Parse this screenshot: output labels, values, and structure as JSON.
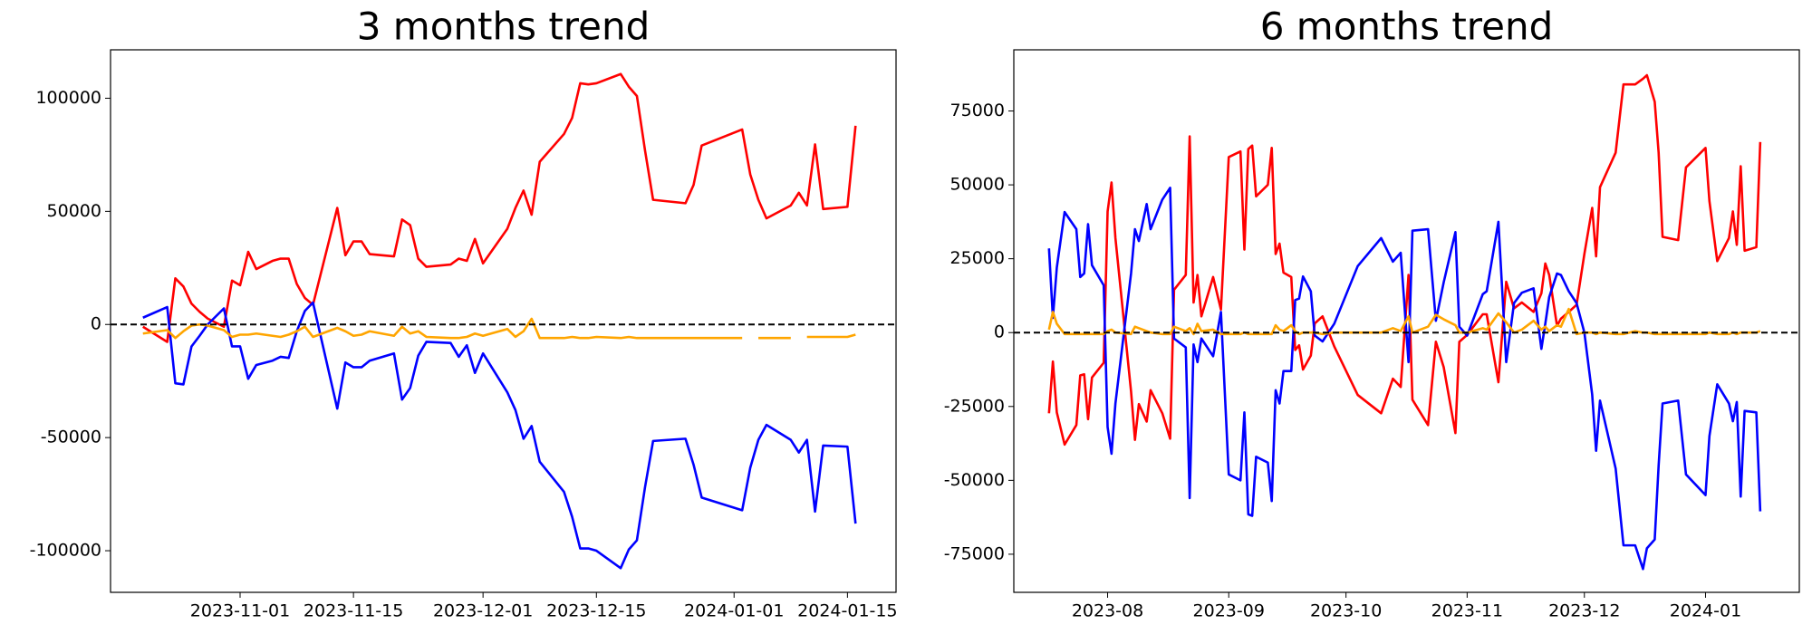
{
  "chart_data": [
    {
      "type": "line",
      "title": "3 months trend",
      "x": [
        "2023-10-20",
        "2023-10-23",
        "2023-10-24",
        "2023-10-25",
        "2023-10-26",
        "2023-10-27",
        "2023-10-28",
        "2023-10-30",
        "2023-10-31",
        "2023-11-01",
        "2023-11-02",
        "2023-11-03",
        "2023-11-05",
        "2023-11-06",
        "2023-11-07",
        "2023-11-08",
        "2023-11-09",
        "2023-11-10",
        "2023-11-13",
        "2023-11-14",
        "2023-11-15",
        "2023-11-16",
        "2023-11-17",
        "2023-11-20",
        "2023-11-21",
        "2023-11-22",
        "2023-11-23",
        "2023-11-24",
        "2023-11-27",
        "2023-11-28",
        "2023-11-29",
        "2023-11-30",
        "2023-12-01",
        "2023-12-04",
        "2023-12-05",
        "2023-12-06",
        "2023-12-07",
        "2023-12-08",
        "2023-12-11",
        "2023-12-12",
        "2023-12-13",
        "2023-12-14",
        "2023-12-15",
        "2023-12-18",
        "2023-12-19",
        "2023-12-20",
        "2023-12-21",
        "2023-12-22",
        "2023-12-26",
        "2023-12-27",
        "2023-12-28",
        "2024-01-02",
        "2024-01-03",
        "2024-01-04",
        "2024-01-05",
        "2024-01-08",
        "2024-01-09",
        "2024-01-10",
        "2024-01-11",
        "2024-01-12",
        "2024-01-15",
        "2024-01-16"
      ],
      "series": [
        {
          "color": "#ff0000",
          "values": [
            -1000,
            -7700,
            20400,
            16800,
            9200,
            5600,
            2600,
            -1000,
            19400,
            17300,
            32100,
            24500,
            28100,
            29100,
            29100,
            17900,
            11700,
            8700,
            51500,
            30600,
            36700,
            36700,
            31100,
            30100,
            46400,
            43900,
            29100,
            25500,
            26500,
            29100,
            28100,
            37800,
            27000,
            42300,
            51500,
            59200,
            48500,
            71900,
            84200,
            91300,
            106600,
            106100,
            106600,
            110700,
            105100,
            101000,
            77000,
            55100,
            53600,
            61700,
            79100,
            86200,
            66300,
            55100,
            46900,
            52600,
            58200,
            52600,
            79600,
            51000,
            52000,
            87800
          ]
        },
        {
          "color": "#0000ff",
          "values": [
            3000,
            7700,
            -26000,
            -26500,
            -9700,
            -5000,
            0,
            7100,
            -9700,
            -9700,
            -24000,
            -17900,
            -16000,
            -14300,
            -14800,
            -3000,
            6000,
            9700,
            -37200,
            -16800,
            -18900,
            -18900,
            -16000,
            -12800,
            -33200,
            -28100,
            -13800,
            -7700,
            -8200,
            -14300,
            -9200,
            -21400,
            -12800,
            -30000,
            -37800,
            -50500,
            -44900,
            -60700,
            -74000,
            -85000,
            -99000,
            -99000,
            -100000,
            -107700,
            -99500,
            -95400,
            -72000,
            -51500,
            -50500,
            -62000,
            -76500,
            -82100,
            -63300,
            -51000,
            -44400,
            -51000,
            -56600,
            -51000,
            -82700,
            -53500,
            -54000,
            -88000
          ]
        },
        {
          "color": "#ffa500",
          "values": [
            -4000,
            -2500,
            -6000,
            -3000,
            -500,
            0,
            -500,
            -2500,
            -5500,
            -4500,
            -4500,
            -4000,
            -5000,
            -5500,
            -4500,
            -3000,
            -1000,
            -5500,
            -1500,
            -3000,
            -5000,
            -4500,
            -3000,
            -5000,
            -1000,
            -4000,
            -3000,
            -5500,
            -6000,
            -6000,
            -5500,
            -4000,
            -5000,
            -2000,
            -5500,
            -3000,
            2500,
            -6000,
            -6000,
            -5500,
            -6000,
            -6000,
            -5500,
            -6000,
            -5500,
            -6000,
            -6000,
            -6000,
            -6000,
            -6000,
            -6000,
            -6000,
            null,
            -6000,
            -6000,
            -6000,
            null,
            -5500,
            -5500,
            -5500,
            -5500,
            -4500
          ]
        }
      ],
      "xlim": [
        "2023-10-16",
        "2024-01-21"
      ],
      "xticks": [
        "2023-11-01",
        "2023-11-15",
        "2023-12-01",
        "2023-12-15",
        "2024-01-01",
        "2024-01-15"
      ],
      "ylim": [
        -118400,
        121400
      ],
      "yticks": [
        -100000,
        -50000,
        0,
        50000,
        100000
      ],
      "hline": 0
    },
    {
      "type": "line",
      "title": "6 months trend",
      "x": [
        "2023-07-17",
        "2023-07-18",
        "2023-07-19",
        "2023-07-21",
        "2023-07-24",
        "2023-07-25",
        "2023-07-26",
        "2023-07-27",
        "2023-07-28",
        "2023-07-31",
        "2023-08-01",
        "2023-08-02",
        "2023-08-03",
        "2023-08-07",
        "2023-08-08",
        "2023-08-09",
        "2023-08-11",
        "2023-08-12",
        "2023-08-15",
        "2023-08-17",
        "2023-08-18",
        "2023-08-21",
        "2023-08-22",
        "2023-08-23",
        "2023-08-24",
        "2023-08-25",
        "2023-08-28",
        "2023-08-30",
        "2023-09-01",
        "2023-09-04",
        "2023-09-05",
        "2023-09-06",
        "2023-09-07",
        "2023-09-08",
        "2023-09-11",
        "2023-09-12",
        "2023-09-13",
        "2023-09-14",
        "2023-09-15",
        "2023-09-17",
        "2023-09-18",
        "2023-09-19",
        "2023-09-20",
        "2023-09-22",
        "2023-09-23",
        "2023-09-25",
        "2023-09-28",
        "2023-10-04",
        "2023-10-10",
        "2023-10-13",
        "2023-10-15",
        "2023-10-17",
        "2023-10-18",
        "2023-10-22",
        "2023-10-24",
        "2023-10-26",
        "2023-10-29",
        "2023-10-30",
        "2023-11-01",
        "2023-11-05",
        "2023-11-06",
        "2023-11-09",
        "2023-11-11",
        "2023-11-13",
        "2023-11-15",
        "2023-11-18",
        "2023-11-20",
        "2023-11-21",
        "2023-11-22",
        "2023-11-24",
        "2023-11-25",
        "2023-11-27",
        "2023-11-29",
        "2023-12-01",
        "2023-12-03",
        "2023-12-04",
        "2023-12-05",
        "2023-12-09",
        "2023-12-11",
        "2023-12-14",
        "2023-12-16",
        "2023-12-17",
        "2023-12-19",
        "2023-12-20",
        "2023-12-21",
        "2023-12-25",
        "2023-12-27",
        "2024-01-01",
        "2024-01-02",
        "2024-01-04",
        "2024-01-07",
        "2024-01-08",
        "2024-01-09",
        "2024-01-10",
        "2024-01-11",
        "2024-01-14",
        "2024-01-15"
      ],
      "series": [
        {
          "color": "#ff0000",
          "values": [
            -27300,
            -9800,
            -27000,
            -37900,
            -31300,
            -14500,
            -14100,
            -29300,
            -15200,
            -10200,
            41000,
            50800,
            32000,
            -19900,
            -36300,
            -24200,
            -30100,
            -19500,
            -27300,
            -35900,
            14500,
            19500,
            66400,
            10200,
            19500,
            5500,
            18800,
            7800,
            59400,
            61300,
            28100,
            62100,
            63300,
            46100,
            50000,
            62500,
            26600,
            30100,
            20300,
            18800,
            -5900,
            -4300,
            -12500,
            -7800,
            3100,
            5500,
            -4700,
            -21100,
            -27300,
            -15600,
            -18400,
            19500,
            -22700,
            -31300,
            -3100,
            -11700,
            -34000,
            -3100,
            -800,
            6200,
            6200,
            -16800,
            17200,
            8200,
            10200,
            7000,
            13300,
            23400,
            19500,
            2300,
            4700,
            7000,
            9400,
            26600,
            42200,
            25800,
            49200,
            60900,
            84000,
            84000,
            85900,
            87100,
            78100,
            60900,
            32400,
            31300,
            55900,
            62500,
            44500,
            24200,
            32000,
            41000,
            29700,
            56300,
            27700,
            28900,
            64500
          ]
        },
        {
          "color": "#0000ff",
          "values": [
            28500,
            5000,
            22000,
            40800,
            35000,
            18800,
            20000,
            36700,
            22800,
            16000,
            -32000,
            -41000,
            -24000,
            20000,
            35000,
            31000,
            43500,
            35000,
            45000,
            49000,
            -2000,
            -5000,
            -56000,
            -4000,
            -10000,
            -2000,
            -8000,
            7000,
            -48000,
            -50000,
            -27000,
            -61500,
            -62000,
            -42000,
            -44000,
            -57000,
            -19500,
            -24000,
            -13000,
            -13000,
            11000,
            11500,
            19000,
            14000,
            -1000,
            -3000,
            3000,
            22500,
            32000,
            24000,
            27000,
            -10000,
            34500,
            35000,
            4000,
            17000,
            34000,
            2000,
            -1000,
            13000,
            14000,
            37500,
            -10000,
            10000,
            13500,
            15000,
            -5500,
            3000,
            12000,
            20000,
            19500,
            14000,
            10000,
            0,
            -21000,
            -40000,
            -23000,
            -46000,
            -72000,
            -72000,
            -80000,
            -73000,
            -70000,
            -45000,
            -24000,
            -23000,
            -48000,
            -55000,
            -35000,
            -17500,
            -24000,
            -30000,
            -23500,
            -55500,
            -26500,
            -27000,
            -60500
          ]
        },
        {
          "color": "#ffa500",
          "values": [
            1000,
            7000,
            3000,
            -500,
            -500,
            -500,
            -500,
            -500,
            -500,
            -500,
            500,
            1000,
            0,
            -500,
            2000,
            1500,
            500,
            0,
            -500,
            -500,
            2000,
            500,
            1500,
            -500,
            3000,
            500,
            1000,
            -500,
            -500,
            -500,
            0,
            -500,
            -500,
            -500,
            -500,
            -500,
            2500,
            1000,
            500,
            2500,
            500,
            -500,
            0,
            0,
            0,
            -500,
            0,
            0,
            0,
            1500,
            500,
            5500,
            0,
            2000,
            6000,
            4500,
            2500,
            0,
            0,
            1500,
            1000,
            6500,
            3500,
            0,
            1000,
            4000,
            1000,
            2000,
            500,
            2500,
            2000,
            8000,
            -500,
            0,
            0,
            -500,
            0,
            -500,
            -500,
            500,
            0,
            0,
            -500,
            -500,
            -500,
            -500,
            -500,
            -500,
            0,
            -500,
            -500,
            0,
            -500,
            0,
            0,
            0,
            500
          ]
        }
      ],
      "xlim": [
        "2023-07-08",
        "2024-01-25"
      ],
      "xticks": [
        {
          "value": "2023-08-01",
          "label": "2023-08"
        },
        {
          "value": "2023-09-01",
          "label": "2023-09"
        },
        {
          "value": "2023-10-01",
          "label": "2023-10"
        },
        {
          "value": "2023-11-01",
          "label": "2023-11"
        },
        {
          "value": "2023-12-01",
          "label": "2023-12"
        },
        {
          "value": "2024-01-01",
          "label": "2024-01"
        }
      ],
      "ylim": [
        -87900,
        95700
      ],
      "yticks": [
        -75000,
        -50000,
        -25000,
        0,
        25000,
        50000,
        75000
      ],
      "hline": 0
    }
  ]
}
